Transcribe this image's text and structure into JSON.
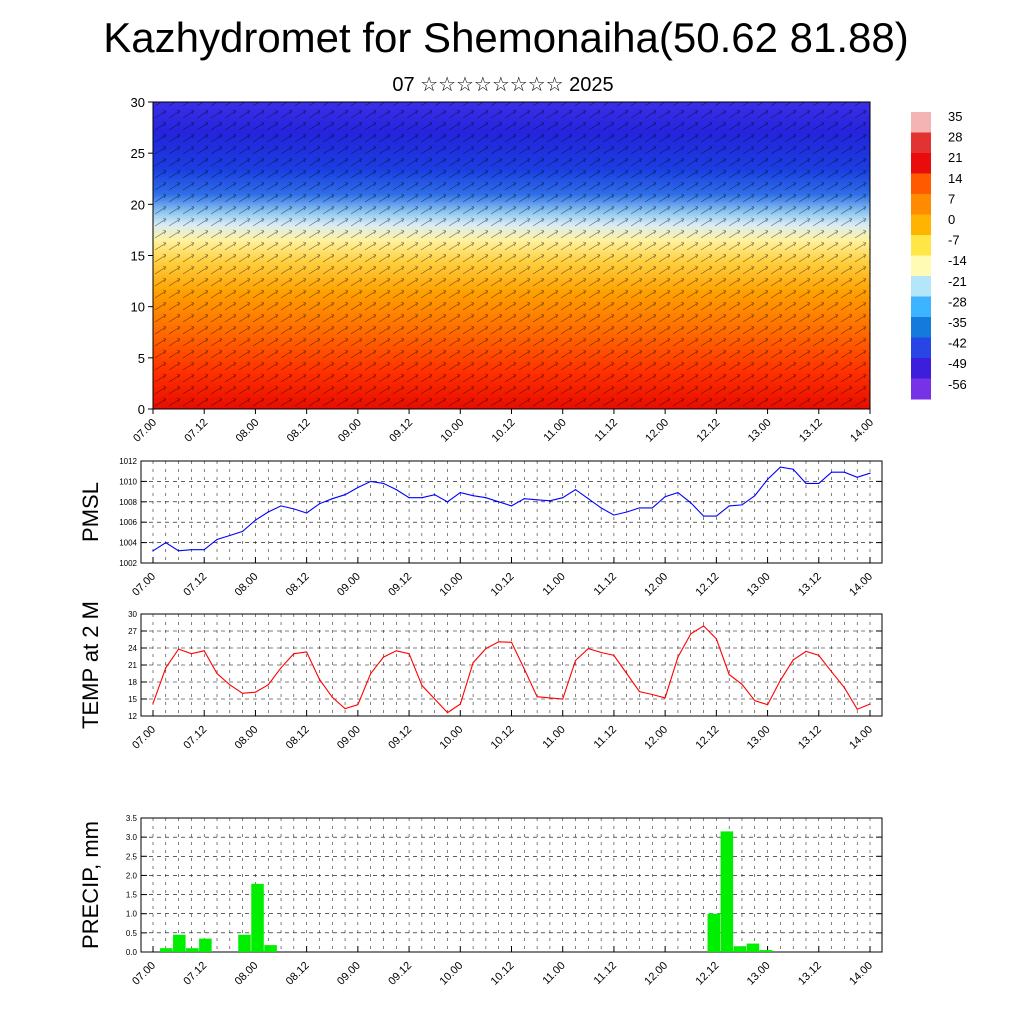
{
  "page": {
    "title": "Kazhydromet for Shemonaiha(50.62 81.88)",
    "subtitle": "07 ☆☆☆☆☆☆☆☆ 2025"
  },
  "chart_data": [
    {
      "type": "heatmap",
      "name": "cross-section",
      "ylim": [
        0,
        30
      ],
      "yticks": [
        "0",
        "5",
        "10",
        "15",
        "20",
        "25",
        "30"
      ],
      "xticks": [
        "07.00",
        "07.12",
        "08.00",
        "08.12",
        "09.00",
        "09.12",
        "10.00",
        "10.12",
        "11.00",
        "11.12",
        "12.00",
        "12.12",
        "13.00",
        "13.12",
        "14.00"
      ],
      "colorbar": {
        "labels": [
          "35",
          "28",
          "21",
          "14",
          "7",
          "0",
          "-7",
          "-14",
          "-21",
          "-28",
          "-35",
          "-42",
          "-49",
          "-56"
        ],
        "colors": [
          "#f4b4b4",
          "#e23232",
          "#e80c0c",
          "#ff5a00",
          "#ff8c00",
          "#ffb400",
          "#ffe646",
          "#fffab4",
          "#b4e6fa",
          "#3cb4ff",
          "#147adc",
          "#2846e6",
          "#3c1edc",
          "#7832e6"
        ]
      }
    },
    {
      "type": "line",
      "name": "pmsl",
      "ylabel": "PMSL",
      "ylim": [
        1002,
        1012
      ],
      "yticks": [
        "1002",
        "1004",
        "1006",
        "1008",
        "1010",
        "1012"
      ],
      "xticks": [
        "07.00",
        "07.12",
        "08.00",
        "08.12",
        "09.00",
        "09.12",
        "10.00",
        "10.12",
        "11.00",
        "11.12",
        "12.00",
        "12.12",
        "13.00",
        "13.12",
        "14.00"
      ],
      "series": [
        {
          "color": "#0000ff",
          "values": [
            1003.2,
            1004.0,
            1003.2,
            1003.3,
            1003.3,
            1004.3,
            1004.7,
            1005.1,
            1006.2,
            1007.0,
            1007.6,
            1007.3,
            1006.9,
            1007.8,
            1008.3,
            1008.7,
            1009.4,
            1010.0,
            1009.8,
            1009.2,
            1008.4,
            1008.4,
            1008.7,
            1008.0,
            1008.9,
            1008.6,
            1008.4,
            1008.0,
            1007.6,
            1008.3,
            1008.2,
            1008.1,
            1008.4,
            1009.2,
            1008.3,
            1007.4,
            1006.7,
            1007.0,
            1007.4,
            1007.4,
            1008.5,
            1008.9,
            1007.9,
            1006.6,
            1006.6,
            1007.6,
            1007.7,
            1008.6,
            1010.2,
            1011.4,
            1011.2,
            1009.8,
            1009.8,
            1010.9,
            1010.9,
            1010.4,
            1010.8
          ]
        }
      ]
    },
    {
      "type": "line",
      "name": "temp",
      "ylabel": "TEMP at 2 M",
      "ylim": [
        12,
        30
      ],
      "yticks": [
        "12",
        "15",
        "18",
        "21",
        "24",
        "27",
        "30"
      ],
      "xticks": [
        "07.00",
        "07.12",
        "08.00",
        "08.12",
        "09.00",
        "09.12",
        "10.00",
        "10.12",
        "11.00",
        "11.12",
        "12.00",
        "12.12",
        "13.00",
        "13.12",
        "14.00"
      ],
      "series": [
        {
          "color": "#ff0000",
          "values": [
            14.2,
            20.5,
            23.8,
            23.0,
            23.5,
            19.5,
            17.5,
            16.0,
            16.2,
            17.5,
            20.5,
            23.0,
            23.3,
            18.5,
            15.3,
            13.3,
            14.0,
            19.5,
            22.4,
            23.5,
            23.0,
            17.4,
            15.0,
            12.6,
            14.1,
            21.4,
            23.9,
            25.1,
            25.0,
            20.3,
            15.4,
            15.2,
            15.0,
            21.8,
            23.9,
            23.2,
            22.7,
            19.5,
            16.3,
            15.8,
            15.2,
            22.4,
            26.5,
            27.9,
            25.6,
            19.3,
            17.6,
            14.7,
            14.0,
            18.3,
            21.9,
            23.4,
            22.7,
            19.8,
            17.0,
            13.2,
            14.1
          ]
        }
      ]
    },
    {
      "type": "bar",
      "name": "precip",
      "ylabel": "PRECIP, mm",
      "ylim": [
        0,
        3.5
      ],
      "yticks": [
        "0.0",
        "0.5",
        "1.0",
        "1.5",
        "2.0",
        "2.5",
        "3.0",
        "3.5"
      ],
      "xticks": [
        "07.00",
        "07.12",
        "08.00",
        "08.12",
        "09.00",
        "09.12",
        "10.00",
        "10.12",
        "11.00",
        "11.12",
        "12.00",
        "12.12",
        "13.00",
        "13.12",
        "14.00"
      ],
      "color": "#00ee00",
      "values": [
        0,
        0.1,
        0.45,
        0.1,
        0.35,
        0,
        0,
        0.45,
        1.78,
        0.18,
        0,
        0,
        0,
        0,
        0,
        0,
        0,
        0,
        0,
        0,
        0,
        0,
        0,
        0,
        0,
        0,
        0,
        0,
        0,
        0,
        0,
        0,
        0,
        0,
        0,
        0,
        0,
        0,
        0,
        0,
        0,
        0,
        0,
        1.0,
        3.15,
        0.15,
        0.22,
        0.05,
        0,
        0,
        0,
        0,
        0,
        0,
        0,
        0
      ]
    }
  ]
}
